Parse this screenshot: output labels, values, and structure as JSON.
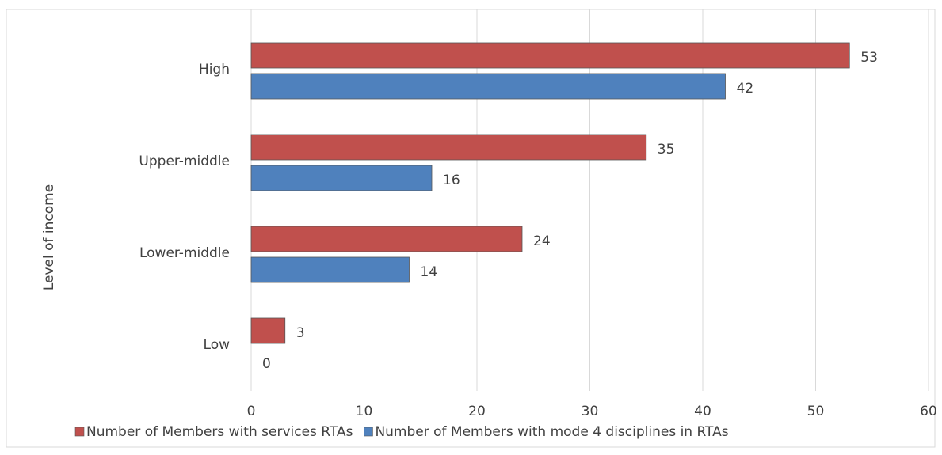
{
  "chart_data": {
    "type": "hbar",
    "categories": [
      "High",
      "Upper-middle",
      "Lower-middle",
      "Low"
    ],
    "series": [
      {
        "name": "Number of Members with services RTAs",
        "color": "#c0504d",
        "values": [
          53,
          35,
          24,
          3
        ]
      },
      {
        "name": "Number of Members with mode 4 disciplines in RTAs",
        "color": "#4f81bd",
        "values": [
          42,
          16,
          14,
          0
        ]
      }
    ],
    "y_label": "Level of income",
    "xlim": [
      0,
      60
    ],
    "xticks": [
      0,
      10,
      20,
      30,
      40,
      50,
      60
    ],
    "grid": true,
    "legend": "bottom"
  }
}
